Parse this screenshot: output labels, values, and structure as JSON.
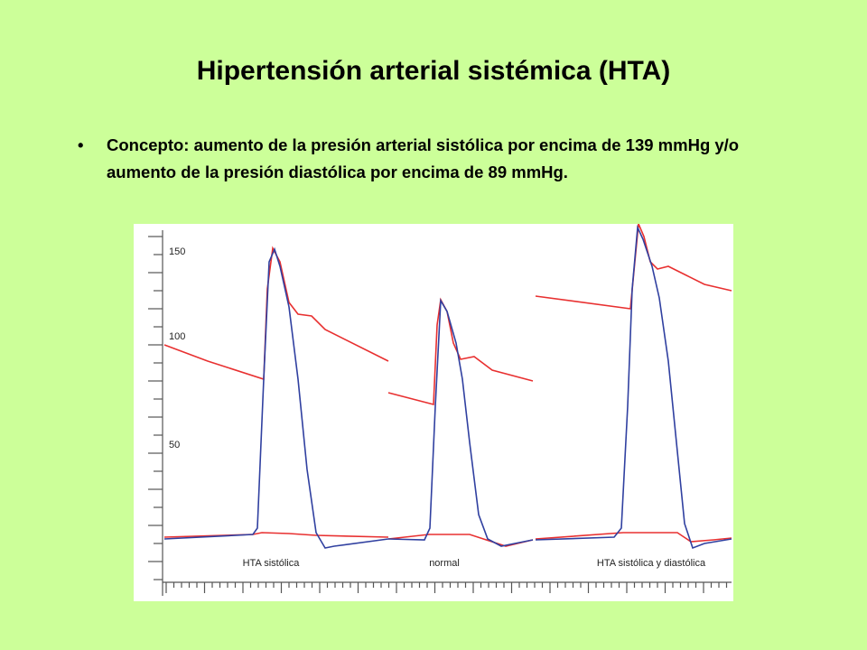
{
  "title": "Hipertensión arterial sistémica (HTA)",
  "bullets": [
    "Concepto: aumento de la presión arterial sistólica por encima de 139 mmHg y/o aumento de la presión diastólica por encima de 89 mmHg."
  ],
  "figure": {
    "y_labels": [
      150,
      100,
      50
    ],
    "segment_labels": [
      "HTA sistólica",
      "normal",
      "HTA sistólica y diastólica"
    ]
  }
}
